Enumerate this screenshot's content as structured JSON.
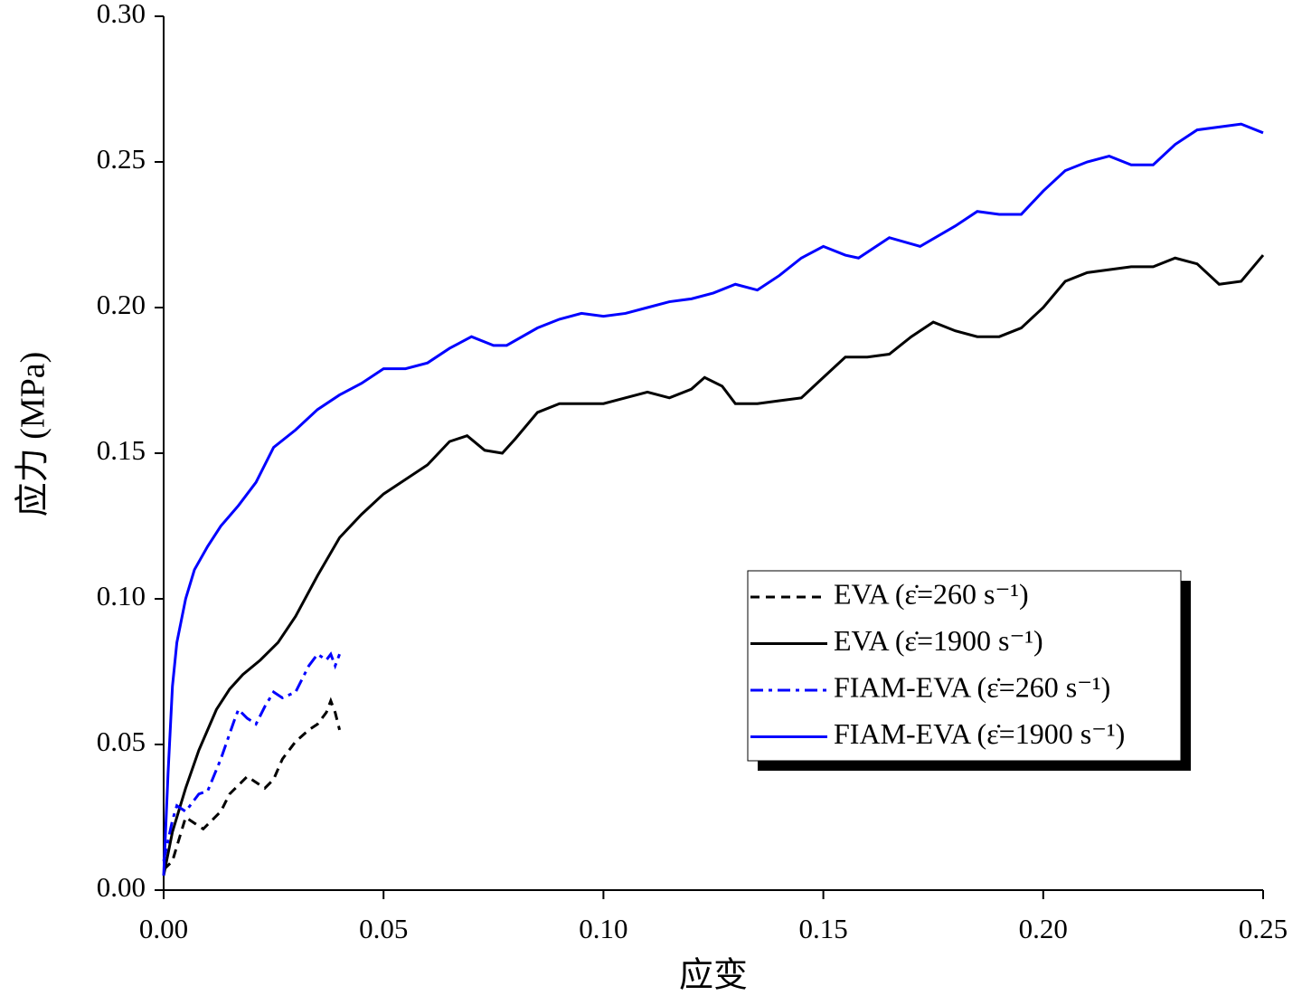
{
  "chart_data": {
    "type": "line",
    "x_label": "应变",
    "y_label": "应力 (MPa)",
    "xlim": [
      0,
      0.25
    ],
    "ylim": [
      0,
      0.3
    ],
    "xticks": [
      {
        "value": 0,
        "label": "0.00"
      },
      0.05,
      {
        "value": 0.1,
        "label": "0.10"
      },
      0.15,
      {
        "value": 0.2,
        "label": "0.20"
      },
      0.25
    ],
    "yticks": [
      {
        "value": 0,
        "label": "0.00"
      },
      0.05,
      {
        "value": 0.1,
        "label": "0.10"
      },
      0.15,
      {
        "value": 0.2,
        "label": "0.20"
      },
      0.25,
      {
        "value": 0.3,
        "label": "0.30"
      }
    ],
    "legend": "lower-right",
    "series": [
      {
        "name": "EVA (ε̇=260 s⁻¹)",
        "color": "#000000",
        "dash": "dashed",
        "x": [
          0,
          0.002,
          0.004,
          0.005,
          0.007,
          0.009,
          0.011,
          0.013,
          0.015,
          0.017,
          0.019,
          0.021,
          0.023,
          0.025,
          0.027,
          0.03,
          0.033,
          0.035,
          0.037,
          0.038,
          0.039,
          0.04
        ],
        "values": [
          0.007,
          0.01,
          0.02,
          0.025,
          0.023,
          0.021,
          0.024,
          0.027,
          0.033,
          0.036,
          0.039,
          0.037,
          0.035,
          0.038,
          0.045,
          0.051,
          0.055,
          0.057,
          0.061,
          0.065,
          0.061,
          0.055
        ]
      },
      {
        "name": "EVA (ε̇=1900 s⁻¹)",
        "color": "#000000",
        "dash": "solid",
        "x": [
          0,
          0.002,
          0.005,
          0.008,
          0.012,
          0.015,
          0.018,
          0.022,
          0.026,
          0.03,
          0.035,
          0.04,
          0.045,
          0.05,
          0.055,
          0.06,
          0.065,
          0.069,
          0.073,
          0.077,
          0.08,
          0.085,
          0.09,
          0.1,
          0.105,
          0.11,
          0.115,
          0.12,
          0.123,
          0.127,
          0.13,
          0.135,
          0.14,
          0.145,
          0.15,
          0.155,
          0.16,
          0.165,
          0.17,
          0.175,
          0.18,
          0.185,
          0.19,
          0.195,
          0.2,
          0.205,
          0.21,
          0.215,
          0.22,
          0.225,
          0.23,
          0.235,
          0.24,
          0.245,
          0.25
        ],
        "values": [
          0.005,
          0.02,
          0.035,
          0.048,
          0.062,
          0.069,
          0.074,
          0.079,
          0.085,
          0.094,
          0.108,
          0.121,
          0.129,
          0.136,
          0.141,
          0.146,
          0.154,
          0.156,
          0.151,
          0.15,
          0.155,
          0.164,
          0.167,
          0.167,
          0.169,
          0.171,
          0.169,
          0.172,
          0.176,
          0.173,
          0.167,
          0.167,
          0.168,
          0.169,
          0.176,
          0.183,
          0.183,
          0.184,
          0.19,
          0.195,
          0.192,
          0.19,
          0.19,
          0.193,
          0.2,
          0.209,
          0.212,
          0.213,
          0.214,
          0.214,
          0.217,
          0.215,
          0.208,
          0.209,
          0.218
        ]
      },
      {
        "name": "FIAM-EVA (ε̇=260 s⁻¹)",
        "color": "#0000ff",
        "dash": "dash-dot",
        "x": [
          0,
          0.002,
          0.003,
          0.005,
          0.008,
          0.01,
          0.013,
          0.016,
          0.017,
          0.019,
          0.021,
          0.023,
          0.025,
          0.027,
          0.03,
          0.033,
          0.035,
          0.037,
          0.038,
          0.039,
          0.04
        ],
        "values": [
          0.01,
          0.024,
          0.029,
          0.027,
          0.033,
          0.034,
          0.045,
          0.058,
          0.062,
          0.059,
          0.057,
          0.063,
          0.068,
          0.066,
          0.068,
          0.077,
          0.081,
          0.079,
          0.081,
          0.077,
          0.081
        ]
      },
      {
        "name": "FIAM-EVA (ε̇=1900 s⁻¹)",
        "color": "#0000ff",
        "dash": "solid",
        "x": [
          0,
          0.001,
          0.002,
          0.003,
          0.005,
          0.007,
          0.01,
          0.013,
          0.017,
          0.021,
          0.025,
          0.03,
          0.035,
          0.04,
          0.045,
          0.05,
          0.055,
          0.06,
          0.065,
          0.07,
          0.075,
          0.078,
          0.085,
          0.09,
          0.095,
          0.1,
          0.105,
          0.11,
          0.115,
          0.12,
          0.125,
          0.13,
          0.135,
          0.14,
          0.145,
          0.15,
          0.155,
          0.158,
          0.165,
          0.172,
          0.18,
          0.185,
          0.19,
          0.195,
          0.2,
          0.205,
          0.21,
          0.215,
          0.22,
          0.225,
          0.23,
          0.235,
          0.24,
          0.245,
          0.25
        ],
        "values": [
          0.005,
          0.04,
          0.07,
          0.085,
          0.1,
          0.11,
          0.118,
          0.125,
          0.132,
          0.14,
          0.152,
          0.158,
          0.165,
          0.17,
          0.174,
          0.179,
          0.179,
          0.181,
          0.186,
          0.19,
          0.187,
          0.187,
          0.193,
          0.196,
          0.198,
          0.197,
          0.198,
          0.2,
          0.202,
          0.203,
          0.205,
          0.208,
          0.206,
          0.211,
          0.217,
          0.221,
          0.218,
          0.217,
          0.224,
          0.221,
          0.228,
          0.233,
          0.232,
          0.232,
          0.24,
          0.247,
          0.25,
          0.252,
          0.249,
          0.249,
          0.256,
          0.261,
          0.262,
          0.263,
          0.26
        ]
      }
    ]
  }
}
